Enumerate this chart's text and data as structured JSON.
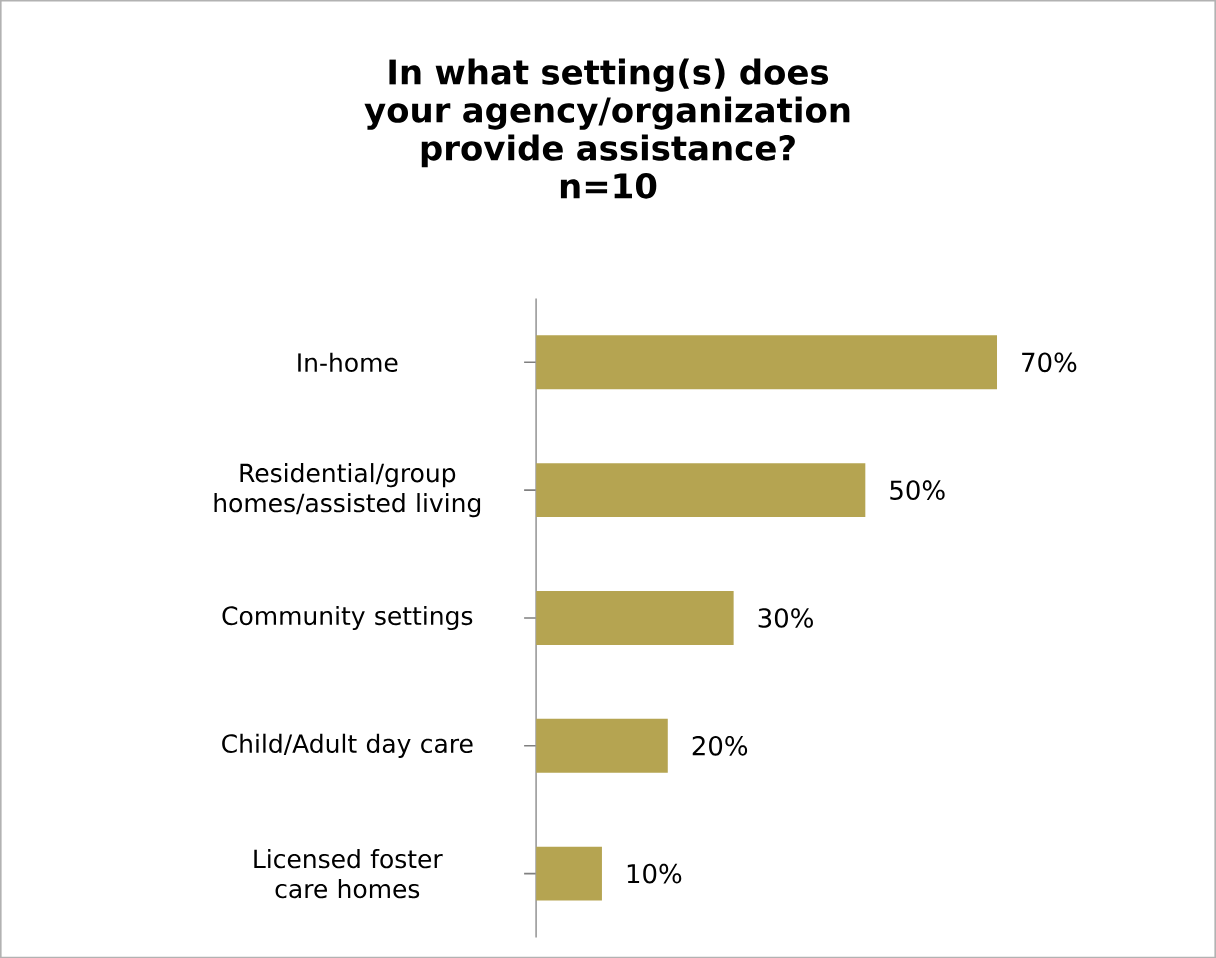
{
  "chart_data": {
    "type": "bar",
    "orientation": "horizontal",
    "title": "In what setting(s) does your agency/organization provide assistance?",
    "subtitle": "n=10",
    "categories": [
      "In-home",
      "Residential/group homes/assisted living",
      "Community settings",
      "Child/Adult day care",
      "Licensed foster care homes"
    ],
    "values": [
      70,
      50,
      30,
      20,
      10
    ],
    "value_labels": [
      "70%",
      "50%",
      "30%",
      "20%",
      "10%"
    ],
    "color": "#b5a451",
    "grid": false
  }
}
